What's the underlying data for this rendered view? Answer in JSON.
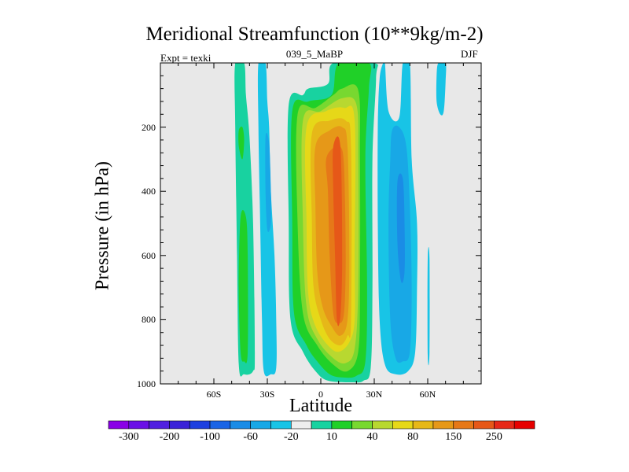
{
  "chart_data": {
    "type": "heatmap",
    "subtype": "filled-contour",
    "title": "Meridional Streamfunction (10**9kg/m-2)",
    "left_label": "Expt = texki",
    "center_label": "039_5_MaBP",
    "right_label": "DJF",
    "xlabel": "Latitude",
    "ylabel": "Pressure (in hPa)",
    "xlim": [
      -90,
      90
    ],
    "ylim": [
      0,
      1000
    ],
    "y_inverted": true,
    "x_ticks": [
      {
        "value": -60,
        "label": "60S"
      },
      {
        "value": -30,
        "label": "30S"
      },
      {
        "value": 0,
        "label": "0"
      },
      {
        "value": 30,
        "label": "30N"
      },
      {
        "value": 60,
        "label": "60N"
      }
    ],
    "y_ticks": [
      {
        "value": 200,
        "label": "200"
      },
      {
        "value": 400,
        "label": "400"
      },
      {
        "value": 600,
        "label": "600"
      },
      {
        "value": 800,
        "label": "800"
      },
      {
        "value": 1000,
        "label": "1000"
      }
    ],
    "background_color": "#e8e8e8",
    "colorbar": {
      "colors": [
        "#8a00e6",
        "#6a10e6",
        "#5020e0",
        "#3a22d8",
        "#1e40e0",
        "#1a64e6",
        "#1a8ce6",
        "#18a8e6",
        "#18c4e6",
        "#eeeeee",
        "#18d2a0",
        "#20d028",
        "#78d830",
        "#b8d830",
        "#e6d818",
        "#e6b818",
        "#e69818",
        "#e67818",
        "#e65818",
        "#e62818",
        "#e60000"
      ],
      "tick_labels": [
        {
          "boundary": 1,
          "label": "-300"
        },
        {
          "boundary": 3,
          "label": "-200"
        },
        {
          "boundary": 5,
          "label": "-100"
        },
        {
          "boundary": 7,
          "label": "-60"
        },
        {
          "boundary": 9,
          "label": "-20"
        },
        {
          "boundary": 11,
          "label": "10"
        },
        {
          "boundary": 13,
          "label": "40"
        },
        {
          "boundary": 15,
          "label": "80"
        },
        {
          "boundary": 17,
          "label": "150"
        },
        {
          "boundary": 19,
          "label": "250"
        }
      ]
    },
    "contours": [
      {
        "name": "sh-cell-1",
        "color": "#18d2a0",
        "points": [
          [
            -48,
            0
          ],
          [
            -43,
            0
          ],
          [
            -42,
            100
          ],
          [
            -40,
            230
          ],
          [
            -38,
            500
          ],
          [
            -37,
            900
          ],
          [
            -38,
            960
          ],
          [
            -43,
            970
          ],
          [
            -46,
            940
          ],
          [
            -47,
            600
          ],
          [
            -48,
            200
          ]
        ]
      },
      {
        "name": "sh-cell-2",
        "color": "#20d028",
        "points": [
          [
            -45,
            480
          ],
          [
            -42,
            480
          ],
          [
            -41,
            600
          ],
          [
            -41,
            900
          ],
          [
            -43,
            930
          ],
          [
            -45,
            900
          ],
          [
            -46,
            700
          ]
        ]
      },
      {
        "name": "sh-cell-3",
        "color": "#20d028",
        "points": [
          [
            -46,
            210
          ],
          [
            -44,
            200
          ],
          [
            -43,
            240
          ],
          [
            -44,
            300
          ],
          [
            -46,
            260
          ]
        ]
      },
      {
        "name": "sh-neg-1",
        "color": "#18c4e6",
        "points": [
          [
            -35,
            0
          ],
          [
            -31,
            0
          ],
          [
            -30,
            120
          ],
          [
            -29,
            200
          ],
          [
            -28,
            400
          ],
          [
            -26,
            600
          ],
          [
            -25,
            800
          ],
          [
            -25,
            950
          ],
          [
            -28,
            970
          ],
          [
            -32,
            960
          ],
          [
            -33,
            800
          ],
          [
            -34,
            500
          ],
          [
            -35,
            200
          ]
        ]
      },
      {
        "name": "sh-neg-2",
        "color": "#18a8e6",
        "points": [
          [
            -31,
            230
          ],
          [
            -29,
            250
          ],
          [
            -28,
            400
          ],
          [
            -28,
            500
          ],
          [
            -30,
            520
          ],
          [
            -31,
            400
          ]
        ]
      },
      {
        "name": "main-10",
        "color": "#18d2a0",
        "points": [
          [
            -18,
            130
          ],
          [
            -10,
            100
          ],
          [
            -7,
            80
          ],
          [
            4,
            65
          ],
          [
            7,
            0
          ],
          [
            30,
            0
          ],
          [
            31,
            50
          ],
          [
            29,
            300
          ],
          [
            29,
            700
          ],
          [
            28,
            950
          ],
          [
            24,
            990
          ],
          [
            18,
            995
          ],
          [
            4,
            990
          ],
          [
            -3,
            960
          ],
          [
            -10,
            900
          ],
          [
            -17,
            800
          ],
          [
            -18,
            500
          ]
        ]
      },
      {
        "name": "main-40",
        "color": "#20d028",
        "points": [
          [
            -16,
            150
          ],
          [
            -7,
            120
          ],
          [
            6,
            100
          ],
          [
            10,
            0
          ],
          [
            27,
            0
          ],
          [
            27,
            80
          ],
          [
            25,
            300
          ],
          [
            26,
            700
          ],
          [
            25,
            930
          ],
          [
            20,
            975
          ],
          [
            12,
            980
          ],
          [
            5,
            970
          ],
          [
            -2,
            930
          ],
          [
            -8,
            880
          ],
          [
            -15,
            780
          ],
          [
            -16,
            500
          ]
        ]
      },
      {
        "name": "main-80",
        "color": "#78d830",
        "points": [
          [
            -13,
            160
          ],
          [
            -3,
            140
          ],
          [
            7,
            100
          ],
          [
            12,
            80
          ],
          [
            21,
            85
          ],
          [
            22,
            300
          ],
          [
            22,
            700
          ],
          [
            21,
            900
          ],
          [
            15,
            960
          ],
          [
            7,
            940
          ],
          [
            -2,
            880
          ],
          [
            -10,
            780
          ],
          [
            -13,
            500
          ]
        ]
      },
      {
        "name": "main-150",
        "color": "#b8d830",
        "points": [
          [
            -10,
            180
          ],
          [
            0,
            150
          ],
          [
            12,
            110
          ],
          [
            20,
            130
          ],
          [
            21,
            300
          ],
          [
            21,
            700
          ],
          [
            19,
            890
          ],
          [
            14,
            935
          ],
          [
            7,
            920
          ],
          [
            -2,
            860
          ],
          [
            -8,
            760
          ],
          [
            -10,
            500
          ]
        ]
      },
      {
        "name": "main-200",
        "color": "#e6d818",
        "points": [
          [
            -8,
            200
          ],
          [
            3,
            150
          ],
          [
            13,
            140
          ],
          [
            19,
            180
          ],
          [
            19,
            600
          ],
          [
            19,
            800
          ],
          [
            16,
            870
          ],
          [
            10,
            900
          ],
          [
            4,
            880
          ],
          [
            -3,
            820
          ],
          [
            -7,
            720
          ],
          [
            -8,
            500
          ]
        ]
      },
      {
        "name": "main-250",
        "color": "#e6b818",
        "points": [
          [
            -5,
            220
          ],
          [
            5,
            180
          ],
          [
            14,
            180
          ],
          [
            17,
            260
          ],
          [
            17,
            800
          ],
          [
            15,
            850
          ],
          [
            11,
            880
          ],
          [
            5,
            860
          ],
          [
            0,
            800
          ],
          [
            -4,
            700
          ],
          [
            -5,
            500
          ]
        ]
      },
      {
        "name": "main-300",
        "color": "#e69818",
        "points": [
          [
            -3,
            260
          ],
          [
            5,
            210
          ],
          [
            12,
            200
          ],
          [
            15,
            260
          ],
          [
            16,
            600
          ],
          [
            15,
            800
          ],
          [
            11,
            850
          ],
          [
            6,
            820
          ],
          [
            1,
            760
          ],
          [
            -2,
            650
          ],
          [
            -3,
            450
          ]
        ]
      },
      {
        "name": "main-350",
        "color": "#e67818",
        "points": [
          [
            3,
            300
          ],
          [
            8,
            260
          ],
          [
            11,
            260
          ],
          [
            13,
            320
          ],
          [
            14,
            600
          ],
          [
            13,
            780
          ],
          [
            10,
            810
          ],
          [
            7,
            780
          ],
          [
            5,
            600
          ],
          [
            4,
            400
          ]
        ]
      },
      {
        "name": "main-400",
        "color": "#e65818",
        "points": [
          [
            7,
            260
          ],
          [
            11,
            260
          ],
          [
            12,
            600
          ],
          [
            11,
            790
          ],
          [
            9,
            800
          ],
          [
            8,
            600
          ],
          [
            7,
            400
          ]
        ]
      },
      {
        "name": "nh-neg-1",
        "color": "#18c4e6",
        "points": [
          [
            33,
            50
          ],
          [
            35,
            0
          ],
          [
            36,
            0
          ],
          [
            38,
            150
          ],
          [
            44,
            170
          ],
          [
            46,
            0
          ],
          [
            50,
            0
          ],
          [
            51,
            300
          ],
          [
            54,
            500
          ],
          [
            54,
            700
          ],
          [
            53,
            900
          ],
          [
            49,
            960
          ],
          [
            42,
            970
          ],
          [
            36,
            940
          ],
          [
            33,
            800
          ],
          [
            32,
            500
          ],
          [
            32,
            200
          ]
        ]
      },
      {
        "name": "nh-neg-2",
        "color": "#18a8e6",
        "points": [
          [
            40,
            210
          ],
          [
            44,
            200
          ],
          [
            48,
            260
          ],
          [
            50,
            450
          ],
          [
            51,
            700
          ],
          [
            50,
            900
          ],
          [
            46,
            930
          ],
          [
            42,
            920
          ],
          [
            39,
            800
          ],
          [
            38,
            500
          ],
          [
            39,
            300
          ]
        ]
      },
      {
        "name": "nh-neg-3",
        "color": "#1a8ce6",
        "points": [
          [
            43,
            370
          ],
          [
            46,
            360
          ],
          [
            47,
            500
          ],
          [
            47,
            650
          ],
          [
            45,
            680
          ],
          [
            43,
            560
          ]
        ]
      },
      {
        "name": "nh-neg-4",
        "color": "#18c4e6",
        "points": [
          [
            66,
            0
          ],
          [
            70,
            0
          ],
          [
            70,
            60
          ],
          [
            69,
            150
          ],
          [
            67,
            160
          ],
          [
            65,
            120
          ],
          [
            65,
            40
          ]
        ]
      },
      {
        "name": "nh-neg-5",
        "color": "#18c4e6",
        "points": [
          [
            60,
            610
          ],
          [
            61,
            610
          ],
          [
            61,
            900
          ],
          [
            60,
            910
          ]
        ]
      }
    ]
  }
}
